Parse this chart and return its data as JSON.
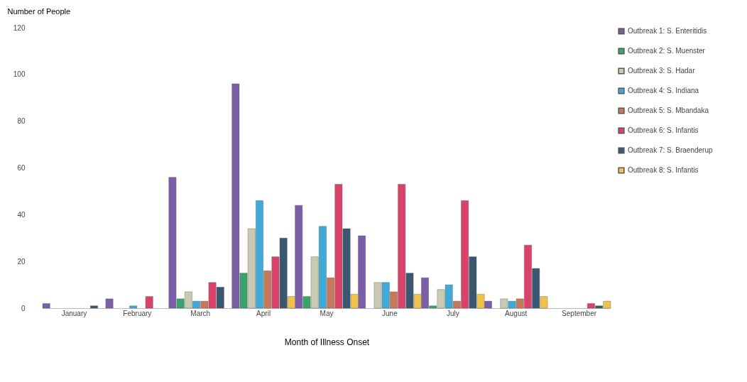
{
  "chart_data": {
    "type": "bar",
    "xlabel": "Month of Illness Onset",
    "ylabel": "Number of People",
    "categories": [
      "January",
      "February",
      "March",
      "April",
      "May",
      "June",
      "July",
      "August",
      "September"
    ],
    "ylim": [
      0,
      120
    ],
    "yticks": [
      0,
      20,
      40,
      60,
      80,
      100,
      120
    ],
    "grid": false,
    "legend": "right",
    "series": [
      {
        "name": "Outbreak 1: S. Enteritidis",
        "color": "#7b5ea7",
        "values": [
          2,
          4,
          56,
          96,
          44,
          31,
          13,
          3,
          null
        ]
      },
      {
        "name": "Outbreak 2: S. Muenster",
        "color": "#3aa36b",
        "values": [
          null,
          null,
          4,
          15,
          5,
          null,
          1,
          null,
          null
        ]
      },
      {
        "name": "Outbreak 3: S. Hadar",
        "color": "#c9c9b4",
        "values": [
          null,
          null,
          7,
          34,
          22,
          11,
          8,
          4,
          null
        ]
      },
      {
        "name": "Outbreak 4: S. Indiana",
        "color": "#3fa9d8",
        "values": [
          null,
          1,
          3,
          46,
          35,
          11,
          10,
          3,
          null
        ]
      },
      {
        "name": "Outbreak 5: S. Mbandaka",
        "color": "#c8785a",
        "values": [
          null,
          null,
          3,
          16,
          13,
          7,
          3,
          4,
          null
        ]
      },
      {
        "name": "Outbreak 6: S. Infantis",
        "color": "#d9436a",
        "values": [
          null,
          5,
          11,
          22,
          53,
          53,
          46,
          27,
          2
        ]
      },
      {
        "name": "Outbreak 7: S. Braenderup",
        "color": "#3b5670",
        "values": [
          1,
          null,
          9,
          30,
          34,
          15,
          22,
          17,
          1
        ]
      },
      {
        "name": "Outbreak 8: S. Infantis",
        "color": "#f2c24f",
        "values": [
          null,
          null,
          null,
          5,
          6,
          6,
          6,
          5,
          3
        ]
      }
    ]
  }
}
